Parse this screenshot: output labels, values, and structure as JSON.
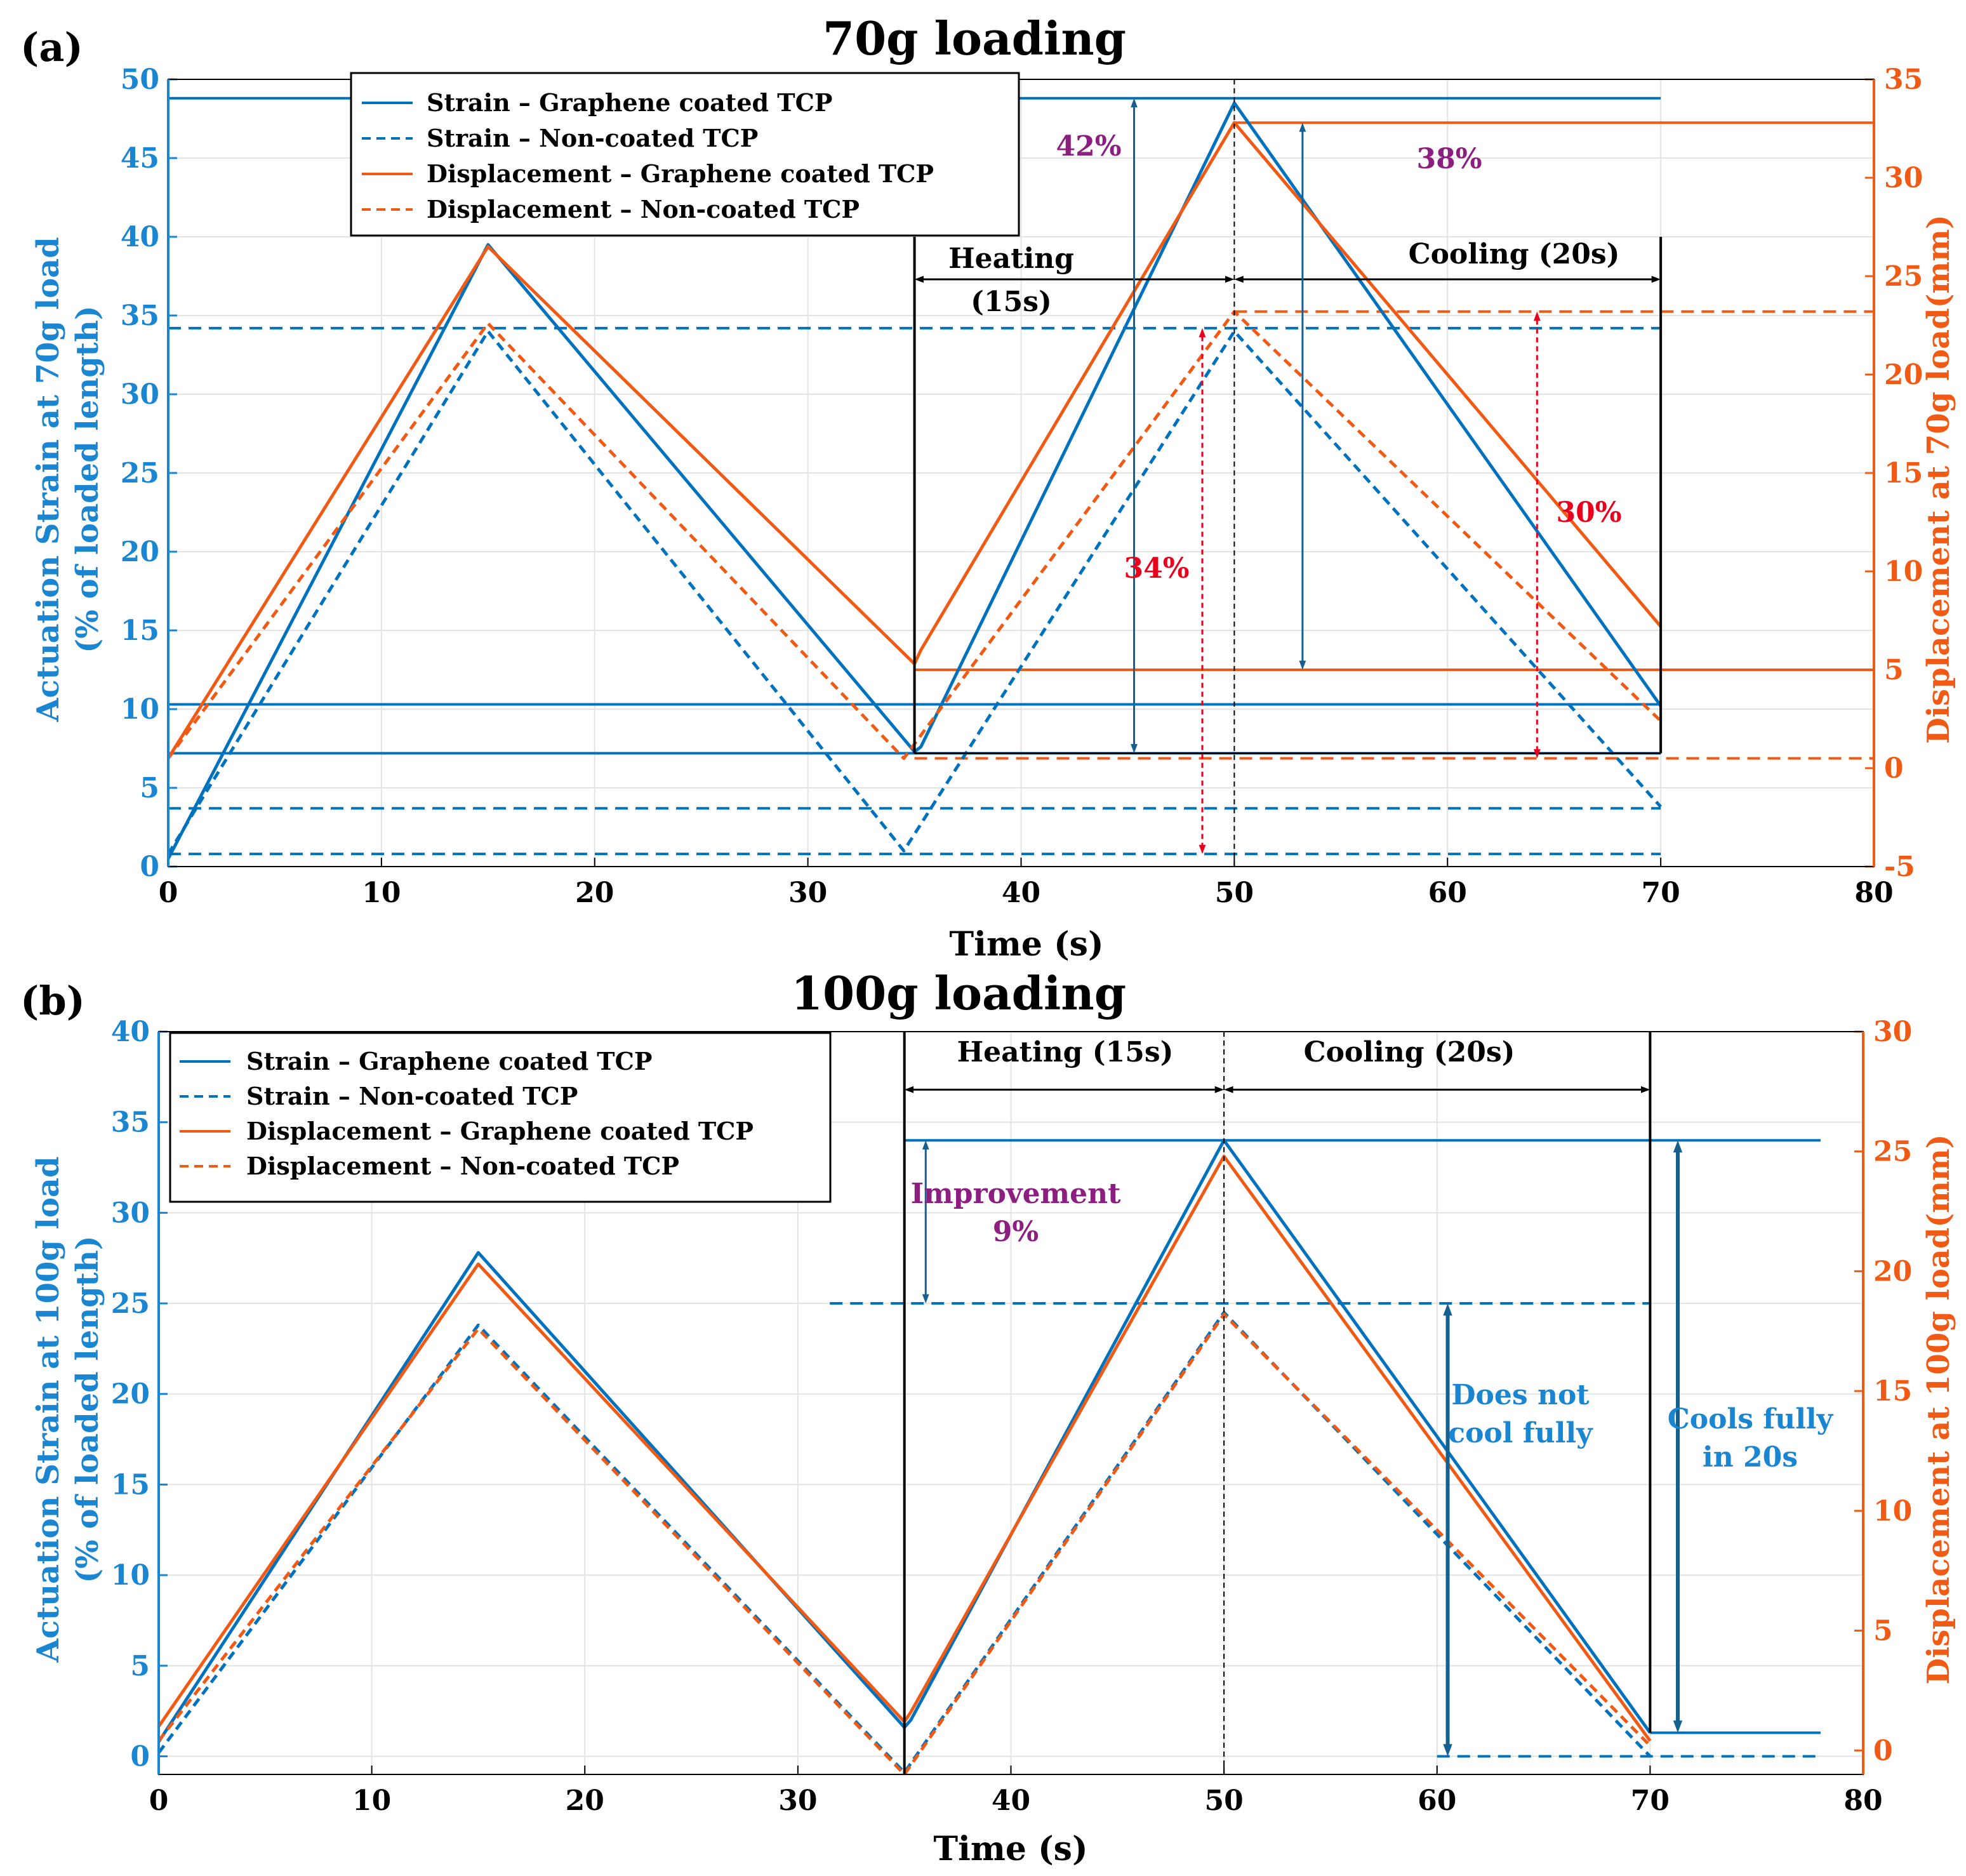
{
  "colors": {
    "blue": "#0072BD",
    "orange": "#F05A14",
    "purple": "#8B1E7F",
    "red": "#E8001C",
    "dark_blue": "#15608E",
    "axis_blue": "#1A85D0",
    "black": "#000000",
    "grid": "#E3E3E3"
  },
  "chart_data": [
    {
      "type": "line",
      "panel_label": "(a)",
      "title": "70g loading",
      "xlabel": "Time (s)",
      "ylabel_left": [
        "Actuation Strain at 70g load",
        "(% of loaded length)"
      ],
      "ylabel_right": "Displacement at 70g load(mm)",
      "xlim": [
        0,
        80
      ],
      "ylim_left": [
        0,
        50
      ],
      "ylim_right": [
        -5,
        35
      ],
      "xticks": [
        0,
        10,
        20,
        30,
        40,
        50,
        60,
        70,
        80
      ],
      "yticks_left": [
        0,
        5,
        10,
        15,
        20,
        25,
        30,
        35,
        40,
        45,
        50
      ],
      "yticks_right": [
        -5,
        0,
        5,
        10,
        15,
        20,
        25,
        30,
        35
      ],
      "grid": true,
      "legend_position": "top-center",
      "legend": [
        "Strain – Graphene coated TCP",
        "Strain – Non-coated TCP",
        "Displacement – Graphene coated TCP",
        "Displacement – Non-coated TCP"
      ],
      "series": [
        {
          "name": "Strain – Graphene coated TCP",
          "axis": "left",
          "style": "solid",
          "color": "blue",
          "x": [
            0,
            15,
            35,
            35.3,
            50,
            70
          ],
          "y": [
            0.5,
            39.5,
            7.3,
            7.6,
            48.5,
            10.2
          ]
        },
        {
          "name": "Strain – Non-coated TCP",
          "axis": "left",
          "style": "dashed",
          "color": "blue",
          "x": [
            0,
            15,
            34.5,
            50,
            70
          ],
          "y": [
            0.8,
            34,
            1.0,
            34,
            3.8
          ]
        },
        {
          "name": "Displacement – Graphene coated TCP",
          "axis": "right",
          "style": "solid",
          "color": "orange",
          "x": [
            0,
            15,
            35,
            35.3,
            50,
            70
          ],
          "y": [
            0.5,
            26.5,
            5.3,
            6.0,
            32.8,
            7.2
          ]
        },
        {
          "name": "Displacement – Non-coated TCP",
          "axis": "right",
          "style": "dashed",
          "color": "orange",
          "x": [
            0,
            15,
            34.5,
            50,
            70
          ],
          "y": [
            0.5,
            22.6,
            0.5,
            23.2,
            2.4
          ]
        }
      ],
      "reference_lines": [
        {
          "axis": "left",
          "y": 48.8,
          "x": [
            0,
            70
          ],
          "style": "solid",
          "color": "blue"
        },
        {
          "axis": "left",
          "y": 34.2,
          "x": [
            0,
            70
          ],
          "style": "dashed",
          "color": "blue"
        },
        {
          "axis": "left",
          "y": 10.3,
          "x": [
            0,
            70
          ],
          "style": "solid",
          "color": "blue"
        },
        {
          "axis": "left",
          "y": 7.2,
          "x": [
            0,
            70
          ],
          "style": "solid",
          "color": "blue"
        },
        {
          "axis": "left",
          "y": 3.7,
          "x": [
            0,
            70
          ],
          "style": "dashed",
          "color": "blue"
        },
        {
          "axis": "left",
          "y": 0.8,
          "x": [
            0,
            70
          ],
          "style": "dashed",
          "color": "blue"
        },
        {
          "axis": "right",
          "y": 32.8,
          "x": [
            50,
            80
          ],
          "style": "solid",
          "color": "orange"
        },
        {
          "axis": "right",
          "y": 23.2,
          "x": [
            50,
            80
          ],
          "style": "dashed",
          "color": "orange"
        },
        {
          "axis": "right",
          "y": 5.0,
          "x": [
            35,
            80
          ],
          "style": "solid",
          "color": "orange"
        },
        {
          "axis": "right",
          "y": 0.5,
          "x": [
            35,
            80
          ],
          "style": "dashed",
          "color": "orange"
        }
      ],
      "phase_lines": {
        "heating_start": 35,
        "peak": 50,
        "cooling_end": 70
      },
      "annotations": {
        "heating_label": [
          "Heating",
          "(15s)"
        ],
        "cooling_label": "Cooling (20s)",
        "strain_improvement": "42%",
        "displacement_improvement": "38%",
        "non_coated_strain": "34%",
        "non_coated_displacement": "30%"
      }
    },
    {
      "type": "line",
      "panel_label": "(b)",
      "title": "100g loading",
      "xlabel": "Time (s)",
      "ylabel_left": [
        "Actuation Strain at 100g load",
        "(% of loaded length)"
      ],
      "ylabel_right": "Displacement at 100g load(mm)",
      "xlim": [
        0,
        80
      ],
      "ylim_left": [
        -1,
        40
      ],
      "ylim_right": [
        -1,
        30
      ],
      "xticks": [
        0,
        10,
        20,
        30,
        40,
        50,
        60,
        70,
        80
      ],
      "yticks_left": [
        0,
        5,
        10,
        15,
        20,
        25,
        30,
        35,
        40
      ],
      "yticks_right": [
        0,
        5,
        10,
        15,
        20,
        25,
        30
      ],
      "grid": true,
      "legend_position": "top-left",
      "legend": [
        "Strain – Graphene coated TCP",
        "Strain – Non-coated TCP",
        "Displacement – Graphene coated TCP",
        "Displacement – Non-coated TCP"
      ],
      "series": [
        {
          "name": "Strain – Graphene coated TCP",
          "axis": "left",
          "style": "solid",
          "color": "blue",
          "x": [
            0,
            15,
            35,
            35.3,
            50,
            70
          ],
          "y": [
            0.8,
            27.8,
            1.6,
            2.0,
            34.0,
            1.3
          ]
        },
        {
          "name": "Strain – Non-coated TCP",
          "axis": "left",
          "style": "dashed",
          "color": "blue",
          "x": [
            0,
            15,
            35,
            50,
            70
          ],
          "y": [
            0.2,
            23.8,
            -0.9,
            24.5,
            0.0
          ]
        },
        {
          "name": "Displacement – Graphene coated TCP",
          "axis": "right",
          "style": "solid",
          "color": "orange",
          "x": [
            0,
            15,
            35,
            35.3,
            50,
            70
          ],
          "y": [
            1.0,
            20.3,
            1.2,
            1.6,
            24.8,
            0.4
          ]
        },
        {
          "name": "Displacement – Non-coated TCP",
          "axis": "right",
          "style": "dashed",
          "color": "orange",
          "x": [
            0,
            15,
            35,
            50,
            70
          ],
          "y": [
            0.4,
            17.6,
            -1.0,
            18.2,
            0.2
          ]
        }
      ],
      "reference_lines": [
        {
          "axis": "left",
          "y": 34.0,
          "x": [
            35,
            78
          ],
          "style": "solid",
          "color": "blue"
        },
        {
          "axis": "left",
          "y": 25.0,
          "x": [
            31.5,
            70
          ],
          "style": "dashed",
          "color": "blue"
        },
        {
          "axis": "left",
          "y": 1.3,
          "x": [
            70,
            78
          ],
          "style": "solid",
          "color": "blue"
        },
        {
          "axis": "left",
          "y": 0.0,
          "x": [
            60,
            78
          ],
          "style": "dashed",
          "color": "blue"
        }
      ],
      "phase_lines": {
        "heating_start": 35,
        "peak": 50,
        "cooling_end": 70
      },
      "annotations": {
        "heating_label": "Heating (15s)",
        "cooling_label": "Cooling (20s)",
        "improvement_label": [
          "Improvement",
          "9%"
        ],
        "non_coated_note": [
          "Does not",
          "cool fully"
        ],
        "coated_note": [
          "Cools fully",
          "in 20s"
        ]
      }
    }
  ]
}
